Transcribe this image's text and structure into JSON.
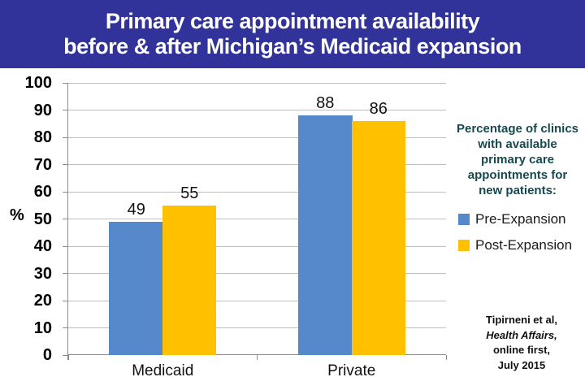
{
  "header": {
    "title_line1": "Primary care appointment availability",
    "title_line2": "before & after Michigan’s Medicaid expansion",
    "bg_color": "#32329B",
    "text_color": "#FFFFFF"
  },
  "chart_data": {
    "type": "bar",
    "title": "Primary care appointment availability before & after Michigan’s Medicaid expansion",
    "categories": [
      "Medicaid",
      "Private"
    ],
    "series": [
      {
        "name": "Pre-Expansion",
        "color": "#5589CB",
        "values": [
          49,
          88
        ]
      },
      {
        "name": "Post-Expansion",
        "color": "#FFC000",
        "values": [
          55,
          86
        ]
      }
    ],
    "ylabel": "%",
    "xlabel": "",
    "ylim": [
      0,
      100
    ],
    "ytick_step": 10,
    "grid": true,
    "gridline_color": "#BFBFBF",
    "axis_color": "#8C8C8C",
    "legend_position": "right",
    "legend_title_lines": [
      "Percentage of clinics",
      "with available",
      "primary care",
      "appointments for",
      "new patients:"
    ],
    "legend_title_color": "#17494E",
    "data_labels": [
      [
        49,
        88
      ],
      [
        55,
        86
      ]
    ]
  },
  "source": {
    "line1": "Tipirneni et al,",
    "line2": "Health Affairs,",
    "line3": "online first,",
    "line4": "July 2015"
  }
}
